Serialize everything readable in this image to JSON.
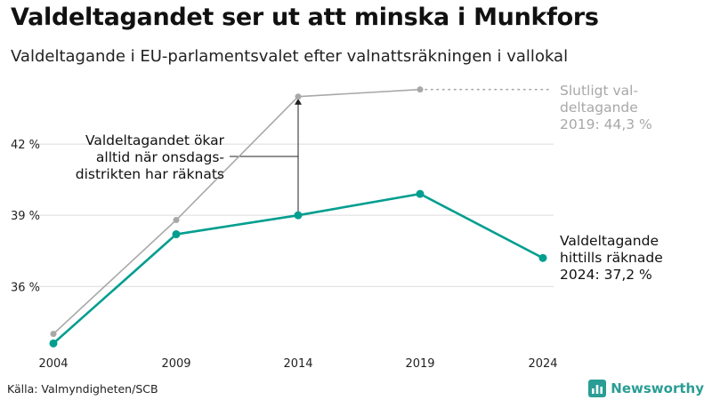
{
  "title": "Valdeltagandet ser ut att minska i Munkfors",
  "subtitle": "Valdeltagande i EU-parlamentsvalet efter valnattsräkningen i vallokal",
  "source": "Källa: Valmyndigheten/SCB",
  "brand": {
    "name": "Newsworthy",
    "icon": "bar-chart-logo-icon"
  },
  "colors": {
    "counted": "#009e8f",
    "final": "#a8a8a8",
    "grid": "#dcdcdc",
    "annotation": "#222222"
  },
  "chart_data": {
    "type": "line",
    "x": [
      "2004",
      "2009",
      "2014",
      "2019",
      "2024"
    ],
    "ylim": [
      33.5,
      45
    ],
    "yticks": [
      36,
      39,
      42
    ],
    "ytick_labels": [
      "36 %",
      "39 %",
      "42 %"
    ],
    "grid": true,
    "series": [
      {
        "key": "final",
        "values": [
          34.0,
          38.8,
          44.0,
          44.3,
          null
        ]
      },
      {
        "key": "counted",
        "values": [
          33.6,
          38.2,
          39.0,
          39.9,
          37.2
        ]
      }
    ],
    "annotations": {
      "final_label": [
        "Slutligt val-",
        "deltagande",
        "2019: 44,3 %"
      ],
      "counted_label": [
        "Valdeltagande",
        "hittills räknade",
        "2024: 37,2 %"
      ],
      "note": [
        "Valdeltagandet ökar",
        "alltid när onsdags-",
        "distrikten har räknats"
      ]
    }
  }
}
